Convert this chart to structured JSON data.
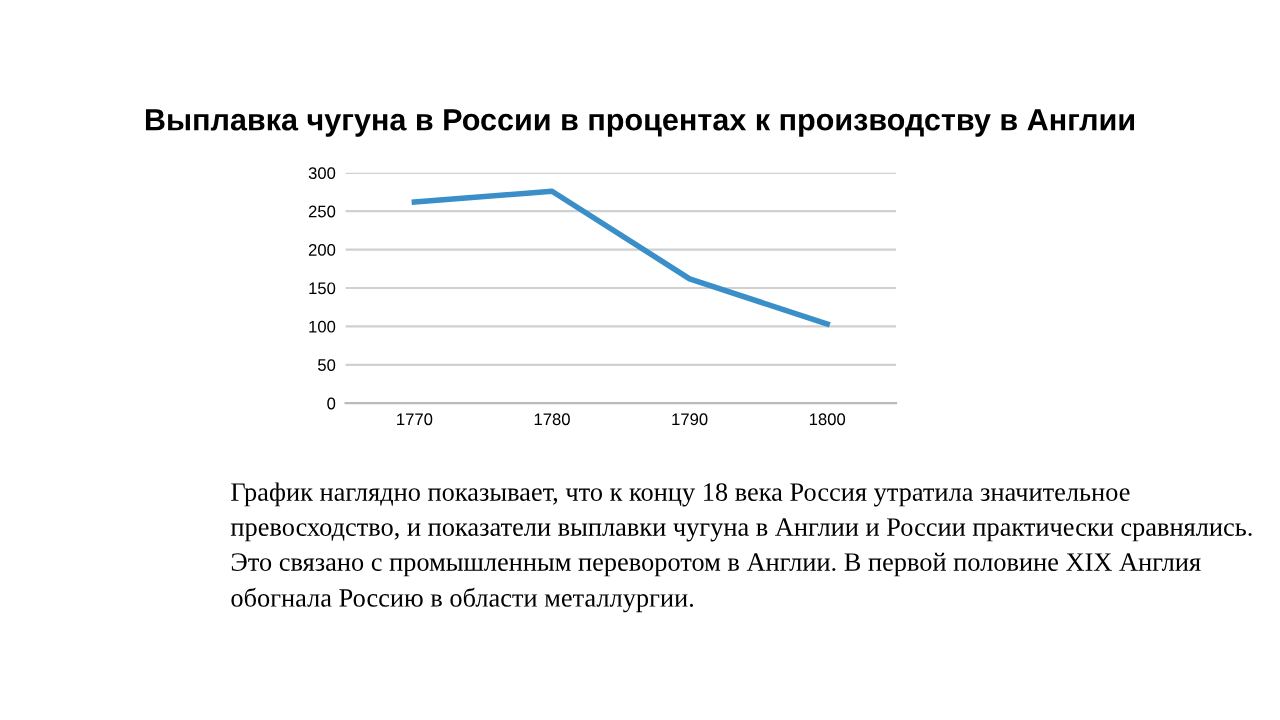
{
  "chart_data": {
    "type": "line",
    "title": "Выплавка чугуна в России в процентах к производству в Англии",
    "categories": [
      "1770",
      "1780",
      "1790",
      "1800"
    ],
    "series": [
      {
        "color": "#3a8fc8",
        "values": [
          262,
          276,
          162,
          103
        ]
      }
    ],
    "ylim": [
      0,
      300
    ],
    "yticks": [
      0,
      50,
      100,
      150,
      200,
      250,
      300
    ],
    "grid": "y",
    "legend": false,
    "marker": "none",
    "line_style": "solid",
    "annotations": [
      "График наглядно показывает, что к концу 18 века Россия утратила значительное превосходство, и показатели выплавки чугуна в Англии и России практически сравнялись. Это связано с промышленным переворотом в Англии. В первой половине XIX Англия обогнала Россию в области металлургии."
    ]
  }
}
